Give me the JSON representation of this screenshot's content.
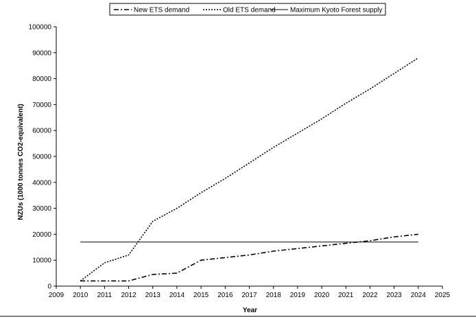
{
  "chart_data": {
    "type": "line",
    "title": "",
    "xlabel": "Year",
    "ylabel": "NZUs (1000 tonnes CO2-equivalent)",
    "xlim": [
      2009,
      2025
    ],
    "ylim": [
      0,
      100000
    ],
    "x_ticks": [
      "2009",
      "2010",
      "2011",
      "2012",
      "2013",
      "2014",
      "2015",
      "2016",
      "2017",
      "2018",
      "2019",
      "2020",
      "2021",
      "2022",
      "2023",
      "2024",
      "2025"
    ],
    "y_ticks": [
      "0",
      "10000",
      "20000",
      "30000",
      "40000",
      "50000",
      "60000",
      "70000",
      "80000",
      "90000",
      "100000"
    ],
    "grid": false,
    "legend_position": "top-center",
    "series": [
      {
        "name": "New ETS demand",
        "style": "dash-dot",
        "color": "#000000",
        "x": [
          2010,
          2011,
          2012,
          2013,
          2014,
          2015,
          2016,
          2017,
          2018,
          2019,
          2020,
          2021,
          2022,
          2023,
          2024
        ],
        "y": [
          2000,
          2000,
          2000,
          4500,
          5000,
          10000,
          11000,
          12000,
          13500,
          14500,
          15500,
          16500,
          17500,
          19000,
          20000
        ]
      },
      {
        "name": "Old ETS demand",
        "style": "dotted",
        "color": "#000000",
        "x": [
          2010,
          2011,
          2012,
          2013,
          2014,
          2015,
          2016,
          2017,
          2018,
          2019,
          2020,
          2021,
          2022,
          2023,
          2024
        ],
        "y": [
          2000,
          9000,
          12000,
          25000,
          30000,
          36000,
          41500,
          47500,
          53500,
          59000,
          64500,
          70500,
          76000,
          82000,
          88000
        ]
      },
      {
        "name": "Maximum Kyoto Forest supply",
        "style": "solid",
        "color": "#000000",
        "x": [
          2010,
          2024
        ],
        "y": [
          17000,
          17000
        ]
      }
    ]
  }
}
